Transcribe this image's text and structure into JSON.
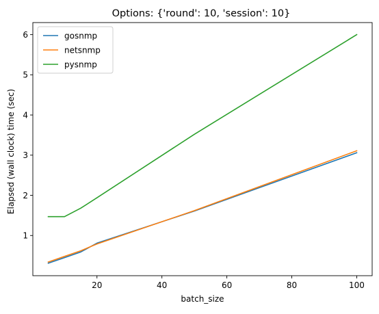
{
  "chart_data": {
    "type": "line",
    "title": "Options: {'round': 10, 'session': 10}",
    "xlabel": "batch_size",
    "ylabel": "Elapsed (wall clock) time (sec)",
    "xlim": [
      0.25,
      104.75
    ],
    "ylim": [
      0.0,
      6.3
    ],
    "xticks": [
      20,
      40,
      60,
      80,
      100
    ],
    "yticks": [
      1,
      2,
      3,
      4,
      5,
      6
    ],
    "grid": false,
    "legend_position": "upper-left",
    "x": [
      5,
      10,
      15,
      20,
      50,
      100
    ],
    "series": [
      {
        "name": "gosnmp",
        "color": "#1f77b4",
        "values": [
          0.31,
          0.45,
          0.59,
          0.81,
          1.61,
          3.06
        ]
      },
      {
        "name": "netsnmp",
        "color": "#ff7f0e",
        "values": [
          0.34,
          0.48,
          0.62,
          0.79,
          1.62,
          3.11
        ]
      },
      {
        "name": "pysnmp",
        "color": "#2ca02c",
        "values": [
          1.47,
          1.47,
          1.68,
          1.94,
          3.52,
          6.0
        ]
      }
    ]
  }
}
